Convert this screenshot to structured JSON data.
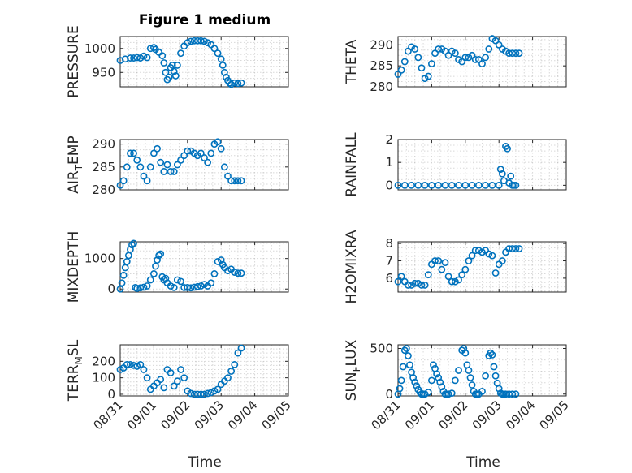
{
  "chart_data": {
    "type": "scatter",
    "title": "Figure 1 medium",
    "marker_color": "#0072BD",
    "marker": "open-circle",
    "grid": true,
    "x_ticks": [
      "08/31",
      "09/01",
      "09/02",
      "09/03",
      "09/04",
      "09/05"
    ],
    "xlabel": "Time",
    "x_range_days": [
      0,
      5
    ],
    "panels": [
      {
        "id": "pressure",
        "ylabel": "PRESSURE",
        "ylabel_sub": "",
        "ylim": [
          920,
          1025
        ],
        "yticks": [
          950,
          1000
        ],
        "x": [
          0,
          0.15,
          0.3,
          0.4,
          0.5,
          0.6,
          0.7,
          0.8,
          0.9,
          1.0,
          1.05,
          1.15,
          1.25,
          1.3,
          1.35,
          1.4,
          1.45,
          1.5,
          1.55,
          1.6,
          1.65,
          1.7,
          1.8,
          1.9,
          2.0,
          2.1,
          2.2,
          2.3,
          2.4,
          2.5,
          2.6,
          2.7,
          2.8,
          2.9,
          3.0,
          3.05,
          3.1,
          3.15,
          3.2,
          3.25,
          3.3,
          3.4,
          3.5,
          3.6
        ],
        "y": [
          975,
          978,
          980,
          980,
          981,
          980,
          984,
          981,
          1000,
          1002,
          998,
          992,
          985,
          970,
          950,
          935,
          940,
          960,
          965,
          952,
          943,
          965,
          990,
          1005,
          1012,
          1015,
          1016,
          1016,
          1016,
          1015,
          1012,
          1008,
          1000,
          990,
          978,
          965,
          950,
          940,
          933,
          928,
          925,
          928,
          927,
          928
        ]
      },
      {
        "id": "theta",
        "ylabel": "THETA",
        "ylabel_sub": "",
        "ylim": [
          280,
          292
        ],
        "yticks": [
          280,
          285,
          290
        ],
        "x": [
          0,
          0.1,
          0.2,
          0.3,
          0.4,
          0.5,
          0.6,
          0.7,
          0.8,
          0.9,
          1.0,
          1.1,
          1.2,
          1.3,
          1.4,
          1.5,
          1.6,
          1.7,
          1.8,
          1.9,
          2.0,
          2.1,
          2.2,
          2.3,
          2.4,
          2.5,
          2.6,
          2.7,
          2.8,
          2.9,
          3.0,
          3.1,
          3.2,
          3.3,
          3.4,
          3.5,
          3.6
        ],
        "y": [
          283,
          284,
          286,
          288.5,
          289.5,
          289,
          287,
          284.5,
          282,
          282.5,
          285.5,
          288,
          289,
          289,
          288.5,
          287.5,
          288.5,
          288,
          286.5,
          286,
          287,
          287,
          287.5,
          286.5,
          286.5,
          285.5,
          287,
          289,
          291.5,
          291,
          290,
          289,
          288.5,
          288,
          288,
          288,
          288
        ]
      },
      {
        "id": "air-temp",
        "ylabel": "AIR",
        "ylabel_sub": "T",
        "ylabel_rest": "EMP",
        "ylim": [
          280,
          291
        ],
        "yticks": [
          280,
          285,
          290
        ],
        "x": [
          0,
          0.1,
          0.2,
          0.3,
          0.4,
          0.5,
          0.6,
          0.7,
          0.8,
          0.9,
          1.0,
          1.1,
          1.2,
          1.3,
          1.4,
          1.5,
          1.6,
          1.7,
          1.8,
          1.9,
          2.0,
          2.1,
          2.2,
          2.3,
          2.4,
          2.5,
          2.6,
          2.7,
          2.8,
          2.9,
          3.0,
          3.1,
          3.2,
          3.3,
          3.4,
          3.5,
          3.6
        ],
        "y": [
          281,
          282,
          285,
          288,
          288,
          286.5,
          285,
          283,
          282,
          285,
          288,
          289,
          286,
          284,
          285.5,
          284,
          284,
          285.5,
          286.5,
          287.5,
          288.5,
          288.5,
          288,
          287.5,
          288,
          287,
          286,
          288,
          290,
          290.5,
          289,
          285,
          283,
          282,
          282,
          282,
          282
        ]
      },
      {
        "id": "rainfall",
        "ylabel": "RAINFALL",
        "ylabel_sub": "",
        "ylim": [
          -0.2,
          2
        ],
        "yticks": [
          0,
          1,
          2
        ],
        "x": [
          0,
          0.2,
          0.4,
          0.6,
          0.8,
          1.0,
          1.2,
          1.4,
          1.6,
          1.8,
          2.0,
          2.2,
          2.4,
          2.6,
          2.8,
          3.0,
          3.05,
          3.1,
          3.15,
          3.2,
          3.25,
          3.3,
          3.35,
          3.4,
          3.45,
          3.5
        ],
        "y": [
          0,
          0,
          0,
          0,
          0,
          0,
          0,
          0,
          0,
          0,
          0,
          0,
          0,
          0,
          0,
          0,
          0.7,
          0.5,
          0.2,
          1.7,
          1.6,
          0.1,
          0.4,
          0,
          0,
          0
        ]
      },
      {
        "id": "mixdepth",
        "ylabel": "MIXDEPTH",
        "ylabel_sub": "",
        "ylim": [
          -100,
          1550
        ],
        "yticks": [
          0,
          1000
        ],
        "x": [
          0,
          0.05,
          0.1,
          0.15,
          0.2,
          0.25,
          0.3,
          0.35,
          0.4,
          0.45,
          0.5,
          0.6,
          0.7,
          0.8,
          0.9,
          1.0,
          1.05,
          1.1,
          1.15,
          1.2,
          1.25,
          1.3,
          1.35,
          1.4,
          1.5,
          1.6,
          1.7,
          1.8,
          1.9,
          2.0,
          2.1,
          2.2,
          2.3,
          2.4,
          2.5,
          2.6,
          2.7,
          2.8,
          2.9,
          3.0,
          3.05,
          3.1,
          3.2,
          3.3,
          3.4,
          3.5,
          3.6
        ],
        "y": [
          0,
          200,
          450,
          700,
          900,
          1100,
          1300,
          1450,
          1500,
          50,
          20,
          40,
          60,
          100,
          300,
          500,
          750,
          950,
          1100,
          1150,
          400,
          300,
          350,
          200,
          100,
          50,
          300,
          250,
          50,
          50,
          40,
          60,
          80,
          100,
          150,
          100,
          200,
          500,
          900,
          950,
          800,
          700,
          600,
          650,
          550,
          520,
          520
        ]
      },
      {
        "id": "h2omixra",
        "ylabel": "H2OMIXRA",
        "ylabel_sub": "",
        "ylim": [
          5.2,
          8.1
        ],
        "yticks": [
          6,
          7,
          8
        ],
        "x": [
          0,
          0.1,
          0.2,
          0.3,
          0.4,
          0.5,
          0.6,
          0.7,
          0.8,
          0.9,
          1.0,
          1.1,
          1.2,
          1.3,
          1.4,
          1.5,
          1.6,
          1.7,
          1.8,
          1.9,
          2.0,
          2.1,
          2.2,
          2.3,
          2.4,
          2.5,
          2.6,
          2.7,
          2.8,
          2.9,
          3.0,
          3.1,
          3.2,
          3.3,
          3.4,
          3.5,
          3.6
        ],
        "y": [
          5.8,
          6.1,
          5.8,
          5.6,
          5.6,
          5.7,
          5.7,
          5.6,
          5.6,
          6.2,
          6.8,
          7.0,
          7.0,
          6.5,
          6.9,
          6.1,
          5.8,
          5.8,
          5.9,
          6.2,
          6.5,
          7.0,
          7.3,
          7.6,
          7.6,
          7.5,
          7.6,
          7.4,
          7.3,
          6.3,
          6.8,
          7.0,
          7.5,
          7.7,
          7.7,
          7.7,
          7.7
        ]
      },
      {
        "id": "terr-msl",
        "ylabel": "TERR",
        "ylabel_sub": "M",
        "ylabel_rest": "SL",
        "ylim": [
          -10,
          300
        ],
        "yticks": [
          0,
          100,
          200
        ],
        "x": [
          0,
          0.1,
          0.2,
          0.3,
          0.4,
          0.5,
          0.6,
          0.7,
          0.8,
          0.9,
          1.0,
          1.1,
          1.2,
          1.3,
          1.4,
          1.5,
          1.6,
          1.7,
          1.8,
          1.9,
          2.0,
          2.1,
          2.2,
          2.3,
          2.4,
          2.5,
          2.6,
          2.7,
          2.8,
          2.9,
          3.0,
          3.1,
          3.2,
          3.3,
          3.4,
          3.5,
          3.6
        ],
        "y": [
          150,
          160,
          180,
          180,
          175,
          170,
          180,
          150,
          100,
          30,
          50,
          70,
          90,
          40,
          150,
          130,
          50,
          80,
          150,
          100,
          20,
          5,
          0,
          0,
          0,
          0,
          5,
          10,
          20,
          30,
          60,
          80,
          100,
          140,
          180,
          250,
          280
        ]
      },
      {
        "id": "sun-flux",
        "ylabel": "SUN",
        "ylabel_sub": "F",
        "ylabel_rest": "LUX",
        "ylim": [
          -20,
          540
        ],
        "yticks": [
          0,
          500
        ],
        "x": [
          0,
          0.05,
          0.1,
          0.15,
          0.2,
          0.25,
          0.3,
          0.35,
          0.4,
          0.45,
          0.5,
          0.55,
          0.6,
          0.65,
          0.7,
          0.75,
          0.8,
          0.9,
          1.0,
          1.05,
          1.1,
          1.15,
          1.2,
          1.25,
          1.3,
          1.35,
          1.4,
          1.45,
          1.5,
          1.6,
          1.7,
          1.8,
          1.9,
          1.95,
          2.0,
          2.05,
          2.1,
          2.15,
          2.2,
          2.25,
          2.3,
          2.35,
          2.4,
          2.5,
          2.6,
          2.7,
          2.75,
          2.8,
          2.85,
          2.9,
          2.95,
          3.0,
          3.05,
          3.1,
          3.15,
          3.2,
          3.3,
          3.4,
          3.5
        ],
        "y": [
          0,
          60,
          150,
          300,
          480,
          500,
          420,
          320,
          240,
          180,
          130,
          90,
          50,
          20,
          0,
          0,
          0,
          20,
          150,
          320,
          280,
          220,
          180,
          130,
          80,
          30,
          0,
          0,
          0,
          10,
          150,
          260,
          480,
          500,
          450,
          320,
          260,
          180,
          100,
          30,
          0,
          0,
          0,
          30,
          200,
          420,
          450,
          430,
          300,
          200,
          120,
          60,
          10,
          0,
          0,
          0,
          0,
          0,
          0
        ]
      }
    ]
  }
}
